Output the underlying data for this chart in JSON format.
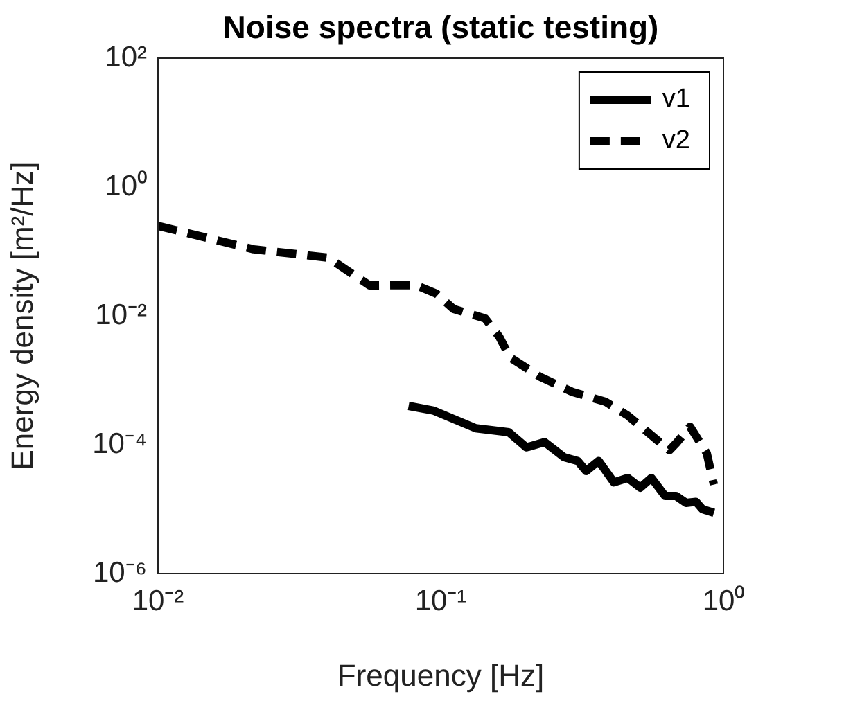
{
  "chart_data": {
    "type": "line",
    "title": "Noise spectra (static testing)",
    "xlabel": "Frequency [Hz]",
    "ylabel": "Energy density [m²/Hz]",
    "log": "xy",
    "grid": false,
    "legend": "top right",
    "marker": "none",
    "xlim": [
      0.01,
      1
    ],
    "xticks": [
      {
        "value": 0.01,
        "label": "10⁻²"
      },
      {
        "value": 0.1,
        "label": "10⁻¹"
      },
      {
        "value": 1,
        "label": "10⁰"
      }
    ],
    "ylim": [
      1e-06,
      100
    ],
    "yticks": [
      {
        "value": 1e-06,
        "label": "10⁻⁶"
      },
      {
        "value": 0.0001,
        "label": "10⁻⁴"
      },
      {
        "value": 0.01,
        "label": "10⁻²"
      },
      {
        "value": 1,
        "label": "10⁰"
      },
      {
        "value": 100,
        "label": "10²"
      }
    ],
    "series": [
      {
        "name": "v1",
        "color": "#000000",
        "line_style": "solid",
        "x": [
          0.077,
          0.094,
          0.133,
          0.174,
          0.201,
          0.233,
          0.273,
          0.305,
          0.327,
          0.362,
          0.41,
          0.459,
          0.508,
          0.556,
          0.622,
          0.68,
          0.738,
          0.8,
          0.843,
          0.925
        ],
        "values": [
          0.0004,
          0.00034,
          0.00018,
          0.000156,
          9.1e-05,
          0.00011,
          6.4e-05,
          5.6e-05,
          3.9e-05,
          5.6e-05,
          2.6e-05,
          3.05e-05,
          2.15e-05,
          3.05e-05,
          1.6e-05,
          1.6e-05,
          1.25e-05,
          1.3e-05,
          1e-05,
          8.8e-06
        ]
      },
      {
        "name": "v2",
        "color": "#000000",
        "line_style": "dashed",
        "x": [
          0.01,
          0.0218,
          0.04,
          0.056,
          0.0817,
          0.0967,
          0.111,
          0.128,
          0.1437,
          0.161,
          0.176,
          0.225,
          0.292,
          0.383,
          0.459,
          0.644,
          0.68,
          0.762,
          0.873,
          0.925
        ],
        "values": [
          0.25,
          0.108,
          0.08,
          0.0297,
          0.03,
          0.022,
          0.0128,
          0.0106,
          0.0091,
          0.00475,
          0.00226,
          0.00113,
          0.00066,
          0.000464,
          0.000283,
          8.2e-05,
          0.000105,
          0.00019,
          7.4e-05,
          2.4e-05
        ]
      }
    ]
  }
}
